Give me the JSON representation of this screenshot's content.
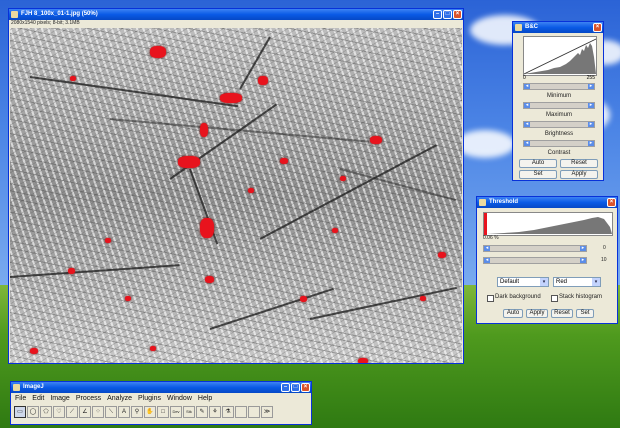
{
  "image_window": {
    "title": "FJH 8_100x_01-1.jpg (50%)",
    "info": "2080x1540 pixels; 8-bit; 3.1MB"
  },
  "bc_window": {
    "title": "B&C",
    "range_min": "0",
    "range_max": "255",
    "labels": [
      "Minimum",
      "Maximum",
      "Brightness",
      "Contrast"
    ],
    "buttons": [
      "Auto",
      "Reset",
      "Set",
      "Apply"
    ]
  },
  "threshold_window": {
    "title": "Threshold",
    "percent": "0.06 %",
    "slider_values": [
      "0",
      "10"
    ],
    "method": "Default",
    "mode": "Red",
    "dark_background": "Dark background",
    "stack_histogram": "Stack histogram",
    "buttons": [
      "Auto",
      "Apply",
      "Reset",
      "Set"
    ]
  },
  "imagej_window": {
    "title": "ImageJ",
    "menu": [
      "File",
      "Edit",
      "Image",
      "Process",
      "Analyze",
      "Plugins",
      "Window",
      "Help"
    ],
    "tools": [
      {
        "icon": "rectangle-tool-icon",
        "glyph": "▭"
      },
      {
        "icon": "oval-tool-icon",
        "glyph": "◯"
      },
      {
        "icon": "polygon-tool-icon",
        "glyph": "⬠"
      },
      {
        "icon": "freehand-tool-icon",
        "glyph": "♡"
      },
      {
        "icon": "line-tool-icon",
        "glyph": "⟋"
      },
      {
        "icon": "angle-tool-icon",
        "glyph": "∠"
      },
      {
        "icon": "point-tool-icon",
        "glyph": "⁘"
      },
      {
        "icon": "wand-tool-icon",
        "glyph": "⟍"
      },
      {
        "icon": "text-tool-icon",
        "glyph": "A"
      },
      {
        "icon": "zoom-tool-icon",
        "glyph": "⚲"
      },
      {
        "icon": "hand-tool-icon",
        "glyph": "✋"
      },
      {
        "icon": "color-picker-icon",
        "glyph": "□"
      },
      {
        "icon": "dev-tool-icon",
        "glyph": "Dev"
      },
      {
        "icon": "stack-tool-icon",
        "glyph": "Stk"
      },
      {
        "icon": "pencil-tool-icon",
        "glyph": "✎"
      },
      {
        "icon": "brush-tool-icon",
        "glyph": "⚘"
      },
      {
        "icon": "dropper-tool-icon",
        "glyph": "⚗"
      },
      {
        "icon": "blank-tool-icon",
        "glyph": ""
      },
      {
        "icon": "blank-tool-icon-2",
        "glyph": ""
      },
      {
        "icon": "more-tools-icon",
        "glyph": "≫"
      }
    ]
  }
}
